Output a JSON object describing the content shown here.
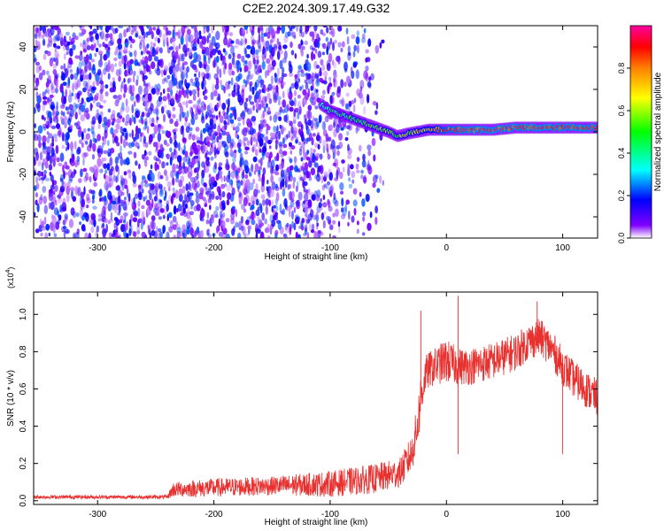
{
  "figure": {
    "title": "C2E2.2024.309.17.49.G32"
  },
  "chart_data": [
    {
      "type": "heatmap",
      "panel": "top",
      "xlabel": "Height of straight line (km)",
      "ylabel": "Frequency (Hz)",
      "xlim": [
        -355,
        130
      ],
      "ylim": [
        -50,
        50
      ],
      "x_ticks": [
        -300,
        -200,
        -100,
        0,
        100
      ],
      "y_ticks": [
        -40,
        -20,
        0,
        20,
        40
      ],
      "colorbar": {
        "label": "Normalized spectral amplitude",
        "range": [
          0.0,
          1.0
        ],
        "ticks": [
          0.0,
          0.2,
          0.4,
          0.6,
          0.8
        ],
        "colormap": [
          "#ffffff",
          "#8000ff",
          "#0000ff",
          "#00ffff",
          "#00ff00",
          "#ffff00",
          "#ff8000",
          "#ff0000",
          "#ff00a0"
        ]
      },
      "noise_region_x": [
        -355,
        -55
      ],
      "noise_level": [
        0.05,
        0.3
      ],
      "signal_trace": {
        "x": [
          -108,
          -100,
          -90,
          -80,
          -70,
          -60,
          -50,
          -42,
          -35,
          -25,
          -15,
          0,
          20,
          40,
          60,
          80,
          100,
          120,
          130
        ],
        "y": [
          13,
          10,
          8,
          6,
          4,
          2,
          0,
          -2,
          -1,
          0,
          1,
          1,
          1,
          1,
          2,
          2,
          2,
          2,
          2
        ],
        "amplitude": [
          0.4,
          0.45,
          0.45,
          0.5,
          0.5,
          0.55,
          0.55,
          0.55,
          0.6,
          0.65,
          0.7,
          0.85,
          0.9,
          0.9,
          0.9,
          0.9,
          0.9,
          0.9,
          0.9
        ]
      },
      "grid": false
    },
    {
      "type": "line",
      "panel": "bottom",
      "xlabel": "Height of straight line (km)",
      "ylabel": "SNR (10 * v/v)",
      "multiplier_label": "(x10",
      "multiplier_exponent": "4",
      "multiplier_close": ")",
      "xlim": [
        -355,
        130
      ],
      "ylim": [
        -0.02,
        1.12
      ],
      "x_ticks": [
        -300,
        -200,
        -100,
        0,
        100
      ],
      "y_ticks": [
        0.0,
        0.2,
        0.4,
        0.6,
        0.8,
        1.0
      ],
      "series": [
        {
          "color": "#e8302f",
          "x": [
            -355,
            -300,
            -240,
            -235,
            -200,
            -150,
            -100,
            -60,
            -40,
            -30,
            -25,
            -22,
            -20,
            -18,
            -15,
            -10,
            0,
            10,
            20,
            40,
            60,
            70,
            80,
            90,
            100,
            110,
            120,
            130
          ],
          "y": [
            0.02,
            0.02,
            0.02,
            0.06,
            0.07,
            0.08,
            0.09,
            0.12,
            0.15,
            0.25,
            0.4,
            0.55,
            0.62,
            0.68,
            0.7,
            0.72,
            0.75,
            0.72,
            0.72,
            0.75,
            0.8,
            0.85,
            0.88,
            0.82,
            0.72,
            0.65,
            0.6,
            0.55
          ],
          "noise_amplitude": [
            0.01,
            0.01,
            0.01,
            0.04,
            0.05,
            0.05,
            0.07,
            0.08,
            0.08,
            0.1,
            0.12,
            0.15,
            0.12,
            0.1,
            0.1,
            0.1,
            0.12,
            0.1,
            0.1,
            0.1,
            0.1,
            0.1,
            0.1,
            0.1,
            0.1,
            0.1,
            0.1,
            0.1
          ]
        }
      ],
      "spikes": [
        {
          "x": -22,
          "y": 1.02
        },
        {
          "x": 10,
          "y": 1.1
        },
        {
          "x": 78,
          "y": 1.07
        },
        {
          "x": 100,
          "y": 0.25
        },
        {
          "x": 10,
          "y": 0.25
        }
      ],
      "grid": false
    }
  ]
}
